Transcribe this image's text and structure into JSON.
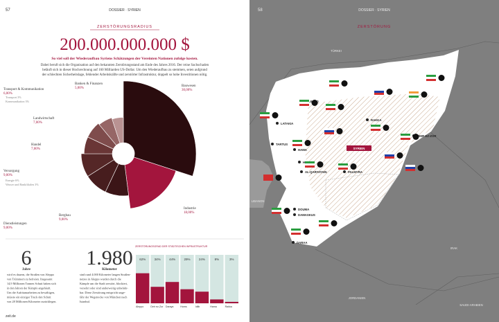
{
  "header_left": {
    "page": "57",
    "section": "DOSSIER · SYRIEN"
  },
  "header_right": {
    "page": "58",
    "section": "DOSSIER · SYRIEN",
    "tag": "ZERSTÖRUNG"
  },
  "kicker": "ZERSTÖRUNGSRADIUS",
  "headline": "200.000.000.000 $",
  "subtitle": "So viel soll der Wiederaufbau Syriens Schätzungen der Vereinten Nationen zufolge kosten.",
  "intro": [
    "Dabei beruft sich die Organisation auf den bekannten Zerstörungsstand am Ende des Jahres 2016. Der reine Sachschaden",
    "beläuft sich in dieser Hochrechnung auf 160 Milliarden US-Dollar. Um den Wiederaufbau zu stemmen, seien aufgrund",
    "der schlechten Sicherheitslage, fehlender Arbeitskräfte und zerstörter Infrastruktur, doppelt so hohe Investitionen nötig."
  ],
  "chart_data": [
    {
      "type": "pie",
      "categories": [
        "Bauwesen",
        "Industrie",
        "Bergbau",
        "Dienstleistungen",
        "Versorgung",
        "Handel",
        "Landwirtschaft",
        "Transport & Kommunikation",
        "Banken & Finanzen"
      ],
      "values": [
        30,
        18,
        9,
        9,
        9,
        7,
        7,
        6,
        5
      ],
      "value_labels": [
        "30,00%",
        "18,00%",
        "9,00%",
        "9,00%",
        "9,00%",
        "7,00%",
        "7,00%",
        "6,00%",
        "5,00%"
      ],
      "colors": [
        "#2a0c0e",
        "#a3153d",
        "#3b1517",
        "#471d1e",
        "#552727",
        "#6a3636",
        "#7f4c4c",
        "#966666",
        "#b99292"
      ]
    },
    {
      "type": "bar",
      "title": "ZERSTÖRUNGSGRAD DER STÄDTISCHEN INFRASTRUKTUR",
      "categories": [
        "Aleppo",
        "Deir ez-Zor",
        "Daraya",
        "Homs",
        "Idlib",
        "Hama",
        "Rakka"
      ],
      "values": [
        62,
        34,
        44,
        29,
        24,
        8,
        3
      ],
      "value_labels": [
        "62%",
        "34%",
        "44%",
        "29%",
        "24%",
        "8%",
        "3%"
      ],
      "color": "#a3153d",
      "ylim": [
        0,
        100
      ]
    }
  ],
  "pie_notes": [
    "Transport 3%",
    "Kommunikation 3%",
    "Energie 6%",
    "Wasser und Bankfilialen 3%"
  ],
  "stats": [
    {
      "number": "6",
      "unit": "Jahre",
      "text": [
        "wird es dauern, die Straßen von Aleppo",
        "von Trümmern zu befreien. Insgesamt",
        "14,9 Millionen Tonnen Schutt haben sich",
        "in den Jahren der Kämpfe angehäuft.",
        "Um die Aufräumarbeiten zu bewältigen,",
        "müsste ein einziger Truck den Schutt",
        "von 28 Millionen Kilometer zurücklegen."
      ]
    },
    {
      "number": "1.980",
      "unit": "Kilometer",
      "text": [
        "sind rund 4.000 Kilometer langen Straßen-",
        "netzes in Aleppo wurden durch die",
        "Kämpfe um die Stadt zerstört, blockiert,",
        "versehrt oder sind anderweitig unbefahr-",
        "bar. Diese Zerstörung entspricht unge-",
        "fähr der Wegstrecke von München nach",
        "Istanbul."
      ]
    }
  ],
  "map": {
    "cities": [
      "ALEPPO",
      "LATAKIA",
      "TARTUS",
      "HAMA",
      "HOMS",
      "AL-QARYATAIN",
      "PALMYRA",
      "RAKKA",
      "DEIR EZ-ZOR",
      "DOUMA",
      "DAMASKUS",
      "DARAA"
    ],
    "label": "SYRIEN",
    "countries": [
      "TÜRKEI",
      "IRAK",
      "LIBANON",
      "JORDANIEN",
      "SAUDI-ARABIEN"
    ]
  },
  "footer": "zeit.de"
}
